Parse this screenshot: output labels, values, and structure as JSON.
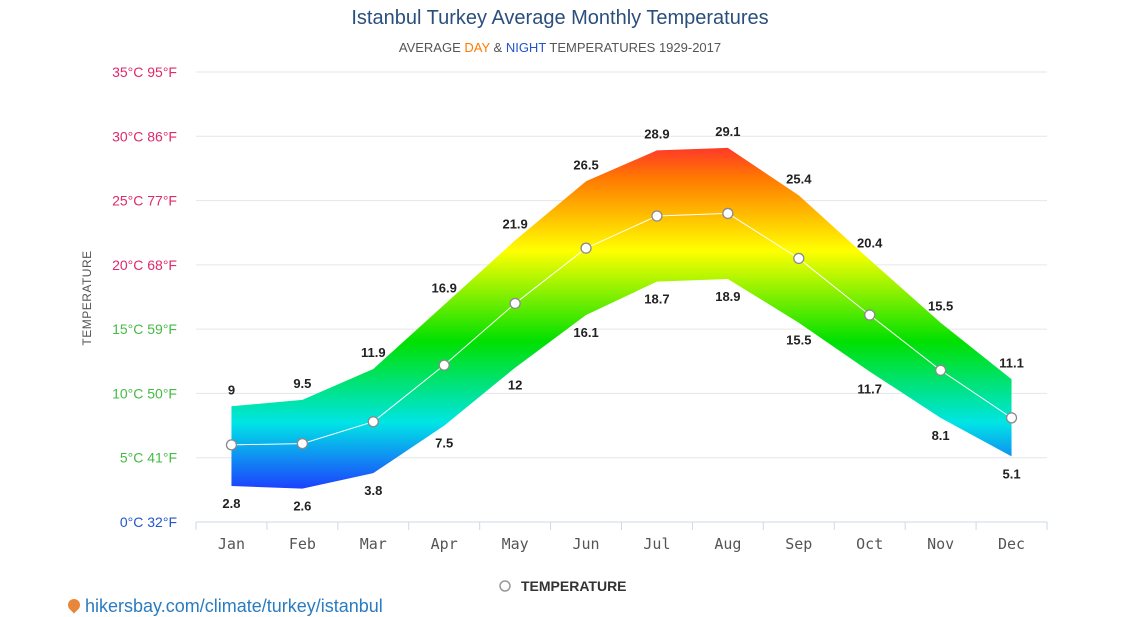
{
  "chart_data": {
    "type": "area",
    "title": "Istanbul Turkey Average Monthly Temperatures",
    "subtitle": {
      "prefix": "AVERAGE ",
      "day": "DAY",
      "amp": " & ",
      "night": "NIGHT",
      "suffix": " TEMPERATURES 1929-2017"
    },
    "ylabel": "TEMPERATURE",
    "ylim": [
      0,
      35
    ],
    "yticks": [
      {
        "value": 0,
        "label": "0°C 32°F",
        "color": "#2255cc"
      },
      {
        "value": 5,
        "label": "5°C 41°F",
        "color": "#44bb44"
      },
      {
        "value": 10,
        "label": "10°C 50°F",
        "color": "#44bb44"
      },
      {
        "value": 15,
        "label": "15°C 59°F",
        "color": "#44bb44"
      },
      {
        "value": 20,
        "label": "20°C 68°F",
        "color": "#e0286a"
      },
      {
        "value": 25,
        "label": "25°C 77°F",
        "color": "#e0286a"
      },
      {
        "value": 30,
        "label": "30°C 86°F",
        "color": "#e0286a"
      },
      {
        "value": 35,
        "label": "35°C 95°F",
        "color": "#e0286a"
      }
    ],
    "categories": [
      "Jan",
      "Feb",
      "Mar",
      "Apr",
      "May",
      "Jun",
      "Jul",
      "Aug",
      "Sep",
      "Oct",
      "Nov",
      "Dec"
    ],
    "series": [
      {
        "values": [
          9,
          9.5,
          11.9,
          16.9,
          21.9,
          26.5,
          28.9,
          29.1,
          25.4,
          20.4,
          15.5,
          11.1
        ]
      },
      {
        "values": [
          2.8,
          2.6,
          3.8,
          7.5,
          12,
          16.1,
          18.7,
          18.9,
          15.5,
          11.7,
          8.1,
          5.1
        ]
      },
      {
        "name": "TEMPERATURE",
        "values": [
          6,
          6.1,
          7.8,
          12.2,
          17,
          21.3,
          23.8,
          24,
          20.5,
          16.1,
          11.8,
          8.1
        ]
      }
    ],
    "grid": true,
    "legend": "bottom-center",
    "colors": {
      "cold": "#1e3cff",
      "cool": "#00e5e5",
      "mild": "#00e000",
      "warm": "#ffff00",
      "hot": "#ff7a00",
      "very_hot": "#ff1a3c",
      "day_color": "#ff7a00",
      "night_color": "#2255cc"
    }
  },
  "source": {
    "link_text": "hikersbay.com/climate/turkey/istanbul",
    "icon": "location-pin-icon"
  }
}
